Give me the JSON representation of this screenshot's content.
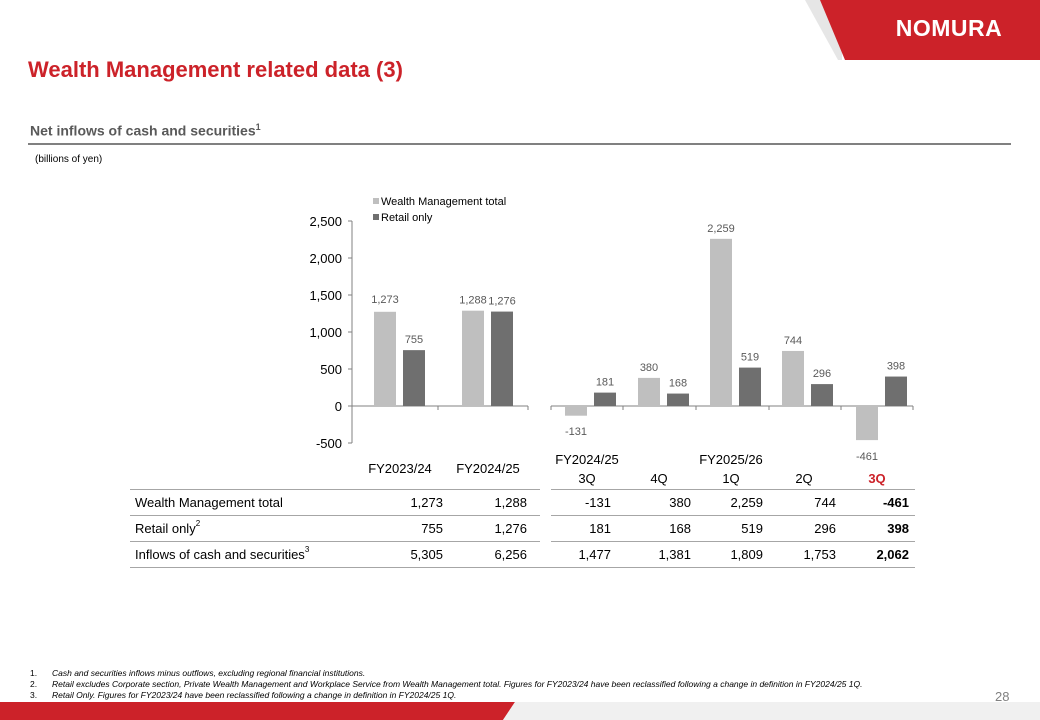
{
  "header": {
    "logo_text": "NOMURA",
    "title": "Wealth Management related data (3)"
  },
  "section": {
    "title": "Net inflows of cash and securities",
    "title_note": "1",
    "unit_note": "(billions of yen)"
  },
  "colors": {
    "brand_red": "#cc2229",
    "series_light": "#bfbfbf",
    "series_dark": "#6f6f6f",
    "highlight": "#cc2229"
  },
  "chart_data": {
    "type": "bar",
    "categories": [
      "FY2023/24",
      "FY2024/25",
      "FY2024/25 3Q",
      "FY2024/25 4Q",
      "FY2025/26 1Q",
      "FY2025/26 2Q",
      "FY2025/26 3Q"
    ],
    "series": [
      {
        "name": "Wealth Management total",
        "values": [
          1273,
          1288,
          -131,
          380,
          2259,
          744,
          -461
        ],
        "labels": [
          "1,273",
          "1,288",
          "-131",
          "380",
          "2,259",
          "744",
          "-461"
        ]
      },
      {
        "name": "Retail only",
        "values": [
          755,
          1276,
          181,
          168,
          519,
          296,
          398
        ],
        "labels": [
          "755",
          "1,276",
          "181",
          "168",
          "519",
          "296",
          "398"
        ]
      }
    ],
    "yticks": [
      "2,500",
      "2,000",
      "1,500",
      "1,000",
      "500",
      "0",
      "-500"
    ],
    "ylim": [
      -500,
      2500
    ],
    "xlabels": {
      "annual": [
        "FY2023/24",
        "FY2024/25"
      ],
      "groups": [
        "FY2024/25",
        "FY2025/26"
      ],
      "quarters": [
        "3Q",
        "4Q",
        "1Q",
        "2Q",
        "3Q"
      ]
    },
    "legend": "top-left"
  },
  "table": {
    "rows": [
      {
        "label": "Wealth Management total",
        "sup": "",
        "values": [
          "1,273",
          "1,288",
          "-131",
          "380",
          "2,259",
          "744",
          "-461"
        ]
      },
      {
        "label": "Retail only",
        "sup": "2",
        "values": [
          "755",
          "1,276",
          "181",
          "168",
          "519",
          "296",
          "398"
        ]
      },
      {
        "label": "Inflows of cash and securities",
        "sup": "3",
        "values": [
          "5,305",
          "6,256",
          "1,477",
          "1,381",
          "1,809",
          "1,753",
          "2,062"
        ]
      }
    ]
  },
  "footnotes": [
    {
      "num": "1.",
      "text": "Cash and securities inflows minus outflows, excluding regional financial institutions."
    },
    {
      "num": "2.",
      "text": "Retail excludes Corporate section, Private Wealth Management and Workplace Service from Wealth Management total. Figures for FY2023/24 have been reclassified following a change in definition in FY2024/25 1Q."
    },
    {
      "num": "3.",
      "text": "Retail Only. Figures for FY2023/24 have been reclassified following a change in definition in FY2024/25 1Q."
    }
  ],
  "page_number": "28"
}
